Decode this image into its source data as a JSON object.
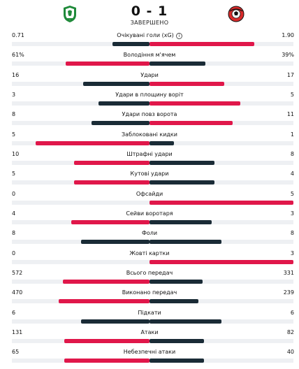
{
  "match": {
    "score": "0 - 1",
    "status": "ЗАВЕРШЕНО",
    "home_logo_icon": "green-shield-logo-icon",
    "away_logo_icon": "red-black-ball-logo-icon"
  },
  "colors": {
    "winner": "#e0174a",
    "other": "#1a2b36",
    "track": "#eef0f3"
  },
  "stats": [
    {
      "label": "Очікувані голи (xG)",
      "home": "0.71",
      "away": "1.90",
      "info": true,
      "home_frac": 0.27,
      "away_frac": 0.73,
      "home_color": "#1a2b36",
      "away_color": "#e0174a"
    },
    {
      "label": "Володіння м'ячем",
      "home": "61%",
      "away": "39%",
      "home_frac": 0.61,
      "away_frac": 0.39,
      "home_color": "#e0174a",
      "away_color": "#1a2b36"
    },
    {
      "label": "Удари",
      "home": "16",
      "away": "17",
      "home_frac": 0.48,
      "away_frac": 0.52,
      "home_color": "#1a2b36",
      "away_color": "#e0174a"
    },
    {
      "label": "Удари в площину воріт",
      "home": "3",
      "away": "5",
      "home_frac": 0.37,
      "away_frac": 0.63,
      "home_color": "#1a2b36",
      "away_color": "#e0174a"
    },
    {
      "label": "Удари повз ворота",
      "home": "8",
      "away": "11",
      "home_frac": 0.42,
      "away_frac": 0.58,
      "home_color": "#1a2b36",
      "away_color": "#e0174a"
    },
    {
      "label": "Заблоковані кидки",
      "home": "5",
      "away": "1",
      "home_frac": 0.83,
      "away_frac": 0.17,
      "home_color": "#e0174a",
      "away_color": "#1a2b36"
    },
    {
      "label": "Штрафні удари",
      "home": "10",
      "away": "8",
      "home_frac": 0.55,
      "away_frac": 0.45,
      "home_color": "#e0174a",
      "away_color": "#1a2b36"
    },
    {
      "label": "Кутові удари",
      "home": "5",
      "away": "4",
      "home_frac": 0.55,
      "away_frac": 0.45,
      "home_color": "#e0174a",
      "away_color": "#1a2b36"
    },
    {
      "label": "Офсайди",
      "home": "0",
      "away": "5",
      "home_frac": 0.0,
      "away_frac": 1.0,
      "home_color": "#1a2b36",
      "away_color": "#e0174a"
    },
    {
      "label": "Сейви воротаря",
      "home": "4",
      "away": "3",
      "home_frac": 0.57,
      "away_frac": 0.43,
      "home_color": "#e0174a",
      "away_color": "#1a2b36"
    },
    {
      "label": "Фоли",
      "home": "8",
      "away": "8",
      "home_frac": 0.5,
      "away_frac": 0.5,
      "home_color": "#1a2b36",
      "away_color": "#1a2b36"
    },
    {
      "label": "Жовті картки",
      "home": "0",
      "away": "3",
      "home_frac": 0.0,
      "away_frac": 1.0,
      "home_color": "#1a2b36",
      "away_color": "#e0174a"
    },
    {
      "label": "Всього передач",
      "home": "572",
      "away": "331",
      "home_frac": 0.63,
      "away_frac": 0.37,
      "home_color": "#e0174a",
      "away_color": "#1a2b36"
    },
    {
      "label": "Виконано передач",
      "home": "470",
      "away": "239",
      "home_frac": 0.66,
      "away_frac": 0.34,
      "home_color": "#e0174a",
      "away_color": "#1a2b36"
    },
    {
      "label": "Підкати",
      "home": "6",
      "away": "6",
      "home_frac": 0.5,
      "away_frac": 0.5,
      "home_color": "#1a2b36",
      "away_color": "#1a2b36"
    },
    {
      "label": "Атаки",
      "home": "131",
      "away": "82",
      "home_frac": 0.62,
      "away_frac": 0.38,
      "home_color": "#e0174a",
      "away_color": "#1a2b36"
    },
    {
      "label": "Небезпечні атаки",
      "home": "65",
      "away": "40",
      "home_frac": 0.62,
      "away_frac": 0.38,
      "home_color": "#e0174a",
      "away_color": "#1a2b36"
    }
  ]
}
